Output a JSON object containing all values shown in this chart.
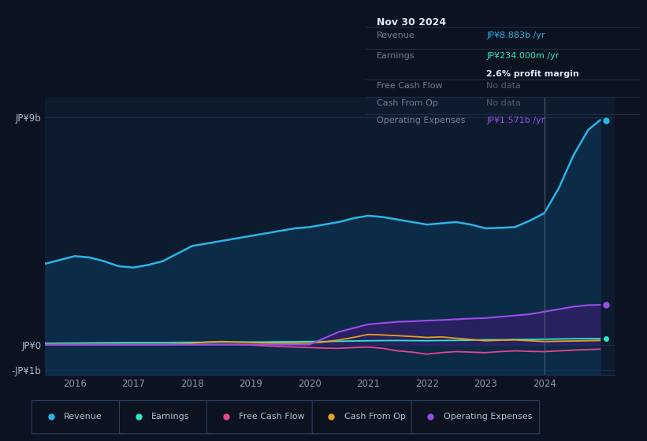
{
  "background_color": "#0c1220",
  "plot_bg_color": "#0d1b2e",
  "x_years": [
    2015.5,
    2015.75,
    2016.0,
    2016.25,
    2016.5,
    2016.75,
    2017.0,
    2017.25,
    2017.5,
    2017.75,
    2018.0,
    2018.25,
    2018.5,
    2018.75,
    2019.0,
    2019.25,
    2019.5,
    2019.75,
    2020.0,
    2020.25,
    2020.5,
    2020.75,
    2021.0,
    2021.25,
    2021.5,
    2021.75,
    2022.0,
    2022.25,
    2022.5,
    2022.75,
    2023.0,
    2023.25,
    2023.5,
    2023.75,
    2024.0,
    2024.25,
    2024.5,
    2024.75,
    2024.95
  ],
  "revenue": [
    3.2,
    3.35,
    3.5,
    3.45,
    3.3,
    3.1,
    3.05,
    3.15,
    3.3,
    3.6,
    3.9,
    4.0,
    4.1,
    4.2,
    4.3,
    4.4,
    4.5,
    4.6,
    4.65,
    4.75,
    4.85,
    5.0,
    5.1,
    5.05,
    4.95,
    4.85,
    4.75,
    4.8,
    4.85,
    4.75,
    4.6,
    4.62,
    4.65,
    4.9,
    5.2,
    6.2,
    7.5,
    8.5,
    8.883
  ],
  "earnings": [
    0.05,
    0.055,
    0.06,
    0.065,
    0.07,
    0.075,
    0.08,
    0.08,
    0.08,
    0.085,
    0.09,
    0.09,
    0.1,
    0.1,
    0.1,
    0.1,
    0.11,
    0.11,
    0.12,
    0.12,
    0.13,
    0.14,
    0.15,
    0.155,
    0.16,
    0.155,
    0.15,
    0.16,
    0.165,
    0.17,
    0.19,
    0.19,
    0.2,
    0.205,
    0.21,
    0.22,
    0.23,
    0.233,
    0.234
  ],
  "free_cash_flow": [
    0.0,
    0.0,
    0.0,
    0.0,
    0.0,
    0.0,
    0.0,
    0.0,
    0.0,
    0.0,
    0.0,
    0.0,
    0.0,
    0.0,
    -0.02,
    -0.05,
    -0.08,
    -0.1,
    -0.12,
    -0.14,
    -0.15,
    -0.12,
    -0.1,
    -0.15,
    -0.25,
    -0.3,
    -0.38,
    -0.32,
    -0.28,
    -0.3,
    -0.32,
    -0.28,
    -0.25,
    -0.27,
    -0.28,
    -0.25,
    -0.22,
    -0.2,
    -0.18
  ],
  "cash_from_op": [
    0.0,
    0.0,
    0.0,
    0.0,
    0.0,
    0.0,
    0.0,
    0.0,
    0.0,
    0.02,
    0.05,
    0.1,
    0.12,
    0.1,
    0.08,
    0.06,
    0.05,
    0.05,
    0.06,
    0.1,
    0.18,
    0.28,
    0.4,
    0.38,
    0.35,
    0.32,
    0.28,
    0.3,
    0.25,
    0.2,
    0.15,
    0.17,
    0.18,
    0.15,
    0.12,
    0.13,
    0.14,
    0.15,
    0.16
  ],
  "operating_expenses": [
    0.0,
    0.0,
    0.0,
    0.0,
    0.0,
    0.0,
    0.0,
    0.0,
    0.0,
    0.0,
    0.0,
    0.0,
    0.0,
    0.0,
    0.0,
    0.0,
    0.0,
    0.0,
    0.0,
    0.25,
    0.5,
    0.65,
    0.8,
    0.85,
    0.9,
    0.92,
    0.95,
    0.97,
    1.0,
    1.03,
    1.05,
    1.1,
    1.15,
    1.2,
    1.3,
    1.4,
    1.5,
    1.56,
    1.571
  ],
  "revenue_color": "#29b5e8",
  "earnings_color": "#2ee8c8",
  "free_cash_flow_color": "#e84393",
  "cash_from_op_color": "#e8a020",
  "operating_expenses_color": "#9b4de8",
  "ylim_min": -1.2,
  "ylim_max": 9.8,
  "ytick_vals": [
    -1,
    0,
    9
  ],
  "ytick_labels": [
    "-JP¥1b",
    "JP¥0",
    "JP¥9b"
  ],
  "x_min": 2015.5,
  "x_max": 2025.2,
  "xticks": [
    2016,
    2017,
    2018,
    2019,
    2020,
    2021,
    2022,
    2023,
    2024
  ],
  "divider_x": 2024.0,
  "info_box": {
    "date": "Nov 30 2024",
    "revenue_label": "Revenue",
    "revenue_value": "JP¥8.883b /yr",
    "earnings_label": "Earnings",
    "earnings_value": "JP¥234.000m /yr",
    "profit_margin": "2.6% profit margin",
    "fcf_label": "Free Cash Flow",
    "fcf_value": "No data",
    "cfo_label": "Cash From Op",
    "cfo_value": "No data",
    "opex_label": "Operating Expenses",
    "opex_value": "JP¥1.571b /yr"
  },
  "legend_items": [
    {
      "label": "Revenue",
      "color": "#29b5e8"
    },
    {
      "label": "Earnings",
      "color": "#2ee8c8"
    },
    {
      "label": "Free Cash Flow",
      "color": "#e84393"
    },
    {
      "label": "Cash From Op",
      "color": "#e8a020"
    },
    {
      "label": "Operating Expenses",
      "color": "#9b4de8"
    }
  ]
}
